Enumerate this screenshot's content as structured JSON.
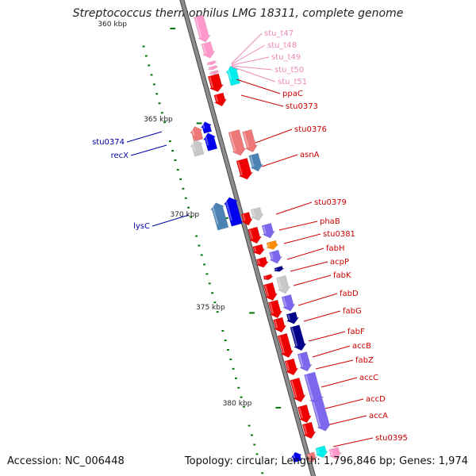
{
  "title": "Streptococcus thermophilus LMG 18311, complete genome",
  "footer": {
    "accession": "Accession: NC_006448",
    "topology": "Topology: circular; Length: 1,796,846 bp; Genes: 1,974"
  },
  "colors": {
    "backbone": "#8c8c8c",
    "red": "#ee0000",
    "salmon": "#ee7777",
    "steel": "#4a82b4",
    "blue": "#0000ee",
    "purple": "#7b68ee",
    "navy": "#00008b",
    "gray": "#c8c8c8",
    "pink": "#ff99cc",
    "cyan": "#00eeee",
    "orange": "#ff8c00",
    "label_red": "#cc0000",
    "label_blue": "#0000aa",
    "label_pink": "#ee88bb",
    "tick": "#007700"
  },
  "scale": {
    "labels": [
      {
        "text": "360 kbp",
        "kbp": 360
      },
      {
        "text": "365 kbp",
        "kbp": 365
      },
      {
        "text": "370 kbp",
        "kbp": 370
      },
      {
        "text": "375 kbp",
        "kbp": 375
      },
      {
        "text": "380 kbp",
        "kbp": 380
      }
    ]
  },
  "gene_labels": [
    {
      "text": "stu_t47",
      "color": "label_pink"
    },
    {
      "text": "stu_t48",
      "color": "label_pink"
    },
    {
      "text": "stu_t49",
      "color": "label_pink"
    },
    {
      "text": "stu_t50",
      "color": "label_pink"
    },
    {
      "text": "stu_t51",
      "color": "label_pink"
    },
    {
      "text": "ppaC",
      "color": "label_red"
    },
    {
      "text": "stu0373",
      "color": "label_red"
    },
    {
      "text": "stu0376",
      "color": "label_red"
    },
    {
      "text": "asnA",
      "color": "label_red"
    },
    {
      "text": "stu0374",
      "color": "label_blue"
    },
    {
      "text": "recX",
      "color": "label_blue"
    },
    {
      "text": "lysC",
      "color": "label_blue"
    },
    {
      "text": "stu0379",
      "color": "label_red"
    },
    {
      "text": "phaB",
      "color": "label_red"
    },
    {
      "text": "stu0381",
      "color": "label_red"
    },
    {
      "text": "fabH",
      "color": "label_red"
    },
    {
      "text": "acpP",
      "color": "label_red"
    },
    {
      "text": "fabK",
      "color": "label_red"
    },
    {
      "text": "fabD",
      "color": "label_red"
    },
    {
      "text": "fabG",
      "color": "label_red"
    },
    {
      "text": "fabF",
      "color": "label_red"
    },
    {
      "text": "accB",
      "color": "label_red"
    },
    {
      "text": "fabZ",
      "color": "label_red"
    },
    {
      "text": "accC",
      "color": "label_red"
    },
    {
      "text": "accD",
      "color": "label_red"
    },
    {
      "text": "accA",
      "color": "label_red"
    },
    {
      "text": "stu0395",
      "color": "label_red"
    }
  ]
}
